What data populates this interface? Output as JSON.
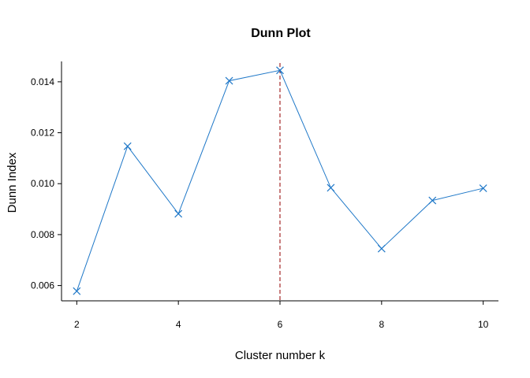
{
  "chart_data": {
    "type": "line",
    "title": "Dunn Plot",
    "xlabel": "Cluster number k",
    "ylabel": "Dunn Index",
    "x": [
      2,
      3,
      4,
      5,
      6,
      7,
      8,
      9,
      10
    ],
    "series": [
      {
        "values": [
          0.00578,
          0.01147,
          0.00882,
          0.01404,
          0.01445,
          0.00984,
          0.00745,
          0.00934,
          0.00982
        ]
      }
    ],
    "xlim": [
      1.7,
      10.3
    ],
    "ylim": [
      0.0054,
      0.0148
    ],
    "xticks": [
      2,
      4,
      6,
      8,
      10
    ],
    "xtick_labels": [
      "2",
      "4",
      "6",
      "8",
      "10"
    ],
    "yticks": [
      0.006,
      0.008,
      0.01,
      0.012,
      0.014
    ],
    "ytick_labels": [
      "0.006",
      "0.008",
      "0.010",
      "0.012",
      "0.014"
    ],
    "vline_x": 6,
    "grid": false,
    "line_color": "#1f78c8",
    "vline_color": "#a52a2a",
    "marker": "x"
  }
}
